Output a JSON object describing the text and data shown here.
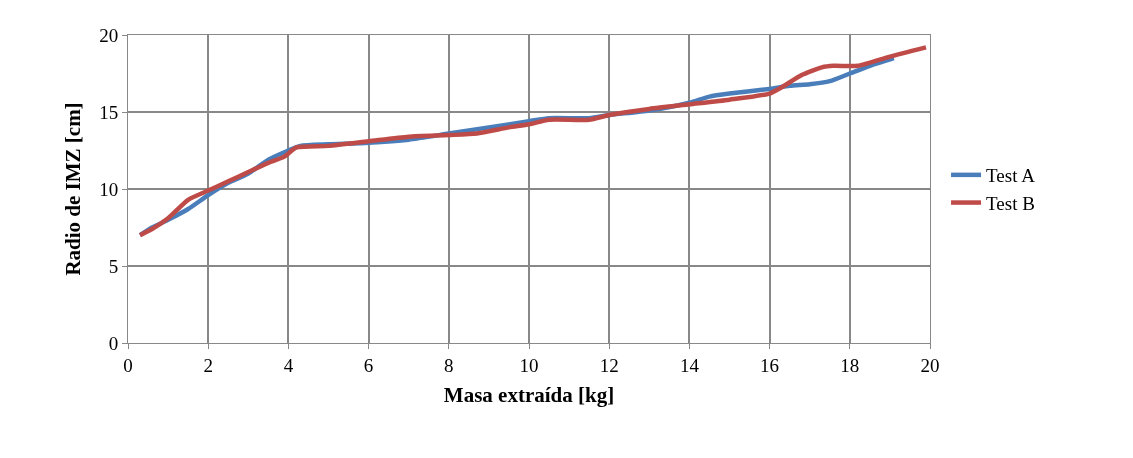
{
  "chart_data": {
    "type": "line",
    "xlabel": "Masa extraída [kg]",
    "ylabel": "Radio de IMZ [cm]",
    "xlim": [
      0,
      20
    ],
    "xticks": [
      0,
      2,
      4,
      6,
      8,
      10,
      12,
      14,
      16,
      18,
      20
    ],
    "ylim": [
      0,
      20
    ],
    "yticks": [
      0,
      5,
      10,
      15,
      20
    ],
    "grid": true,
    "legend": "right",
    "marker": "none",
    "line_style": "solid",
    "series": [
      {
        "name": "Test A",
        "color": "#4a7ebb",
        "x": [
          0.3,
          0.6,
          1.0,
          1.5,
          2.0,
          2.5,
          3.0,
          3.5,
          4.0,
          4.3,
          5.0,
          6.0,
          7.0,
          8.0,
          9.0,
          10.0,
          10.5,
          11.5,
          12.0,
          13.0,
          14.0,
          14.5,
          15.0,
          16.0,
          16.5,
          17.0,
          17.5,
          18.0,
          18.5,
          19.1
        ],
        "values": [
          7.0,
          7.5,
          8.0,
          8.7,
          9.6,
          10.4,
          11.0,
          11.9,
          12.5,
          12.8,
          12.9,
          13.0,
          13.2,
          13.6,
          14.0,
          14.4,
          14.6,
          14.6,
          14.8,
          15.1,
          15.6,
          16.0,
          16.2,
          16.5,
          16.7,
          16.8,
          17.0,
          17.5,
          18.0,
          18.5
        ]
      },
      {
        "name": "Test B",
        "color": "#be4b48",
        "x": [
          0.3,
          0.6,
          1.0,
          1.5,
          2.0,
          2.5,
          3.0,
          3.5,
          3.9,
          4.2,
          5.0,
          6.0,
          7.0,
          8.0,
          8.7,
          9.5,
          10.0,
          10.5,
          11.5,
          12.0,
          13.0,
          14.0,
          15.0,
          16.0,
          16.3,
          16.8,
          17.3,
          17.6,
          18.2,
          19.0,
          19.9
        ],
        "values": [
          7.0,
          7.4,
          8.1,
          9.3,
          9.9,
          10.5,
          11.1,
          11.7,
          12.1,
          12.7,
          12.8,
          13.1,
          13.4,
          13.5,
          13.6,
          14.0,
          14.2,
          14.5,
          14.5,
          14.8,
          15.2,
          15.5,
          15.8,
          16.2,
          16.6,
          17.4,
          17.9,
          18.0,
          18.0,
          18.6,
          19.2
        ]
      }
    ]
  }
}
